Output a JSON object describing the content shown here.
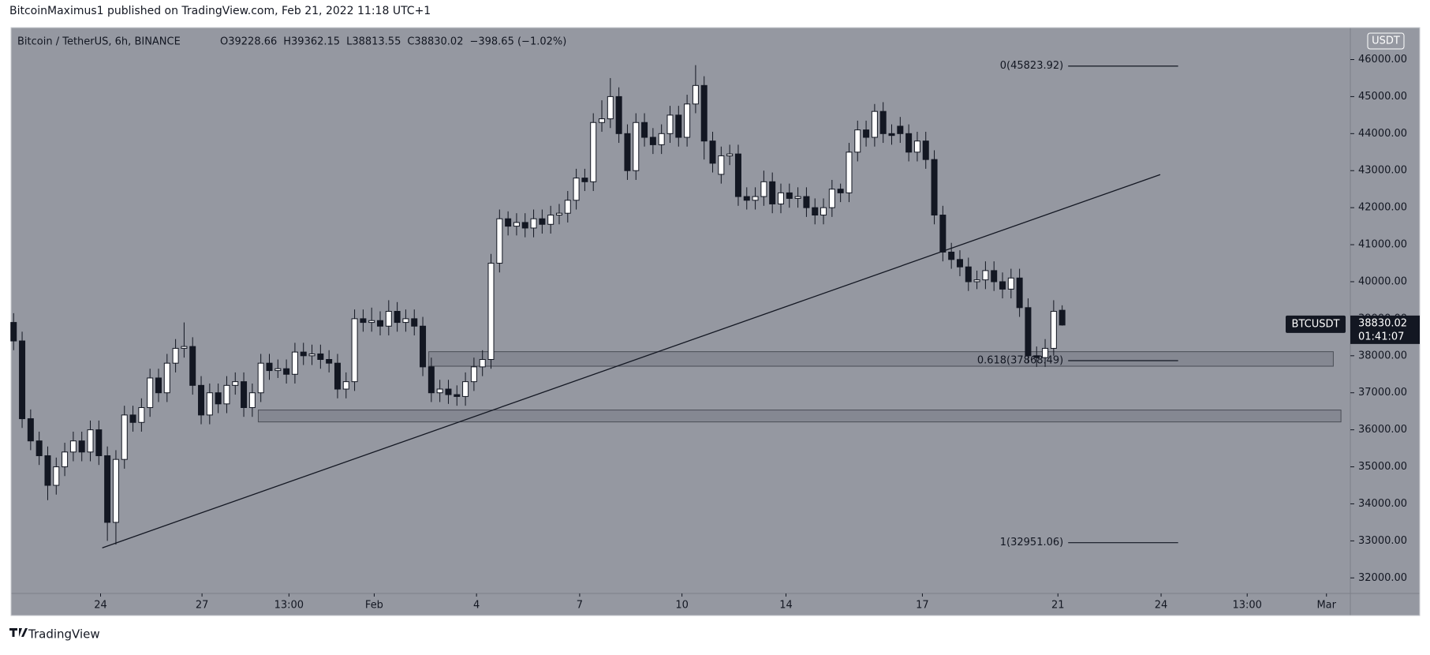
{
  "chart_data": {
    "type": "candlestick",
    "published": "BitcoinMaximus1 published on TradingView.com, Feb 21, 2022 11:18 UTC+1",
    "title": "Bitcoin / TetherUS, 6h, BINANCE",
    "header_ohlc": [
      "O39228.66",
      "H39362.15",
      "L38813.55",
      "C38830.02"
    ],
    "header_change": "−398.65 (−1.02%)",
    "currency": "USDT",
    "brand": "TradingView",
    "up_color": "#ffffff",
    "down_color": "#131722",
    "background": "#9598a1",
    "xlim": [
      -0.3,
      156.8
    ],
    "ylim": [
      31580,
      46863
    ],
    "xticks": [
      {
        "value": 10.2,
        "label": "24"
      },
      {
        "value": 22.1,
        "label": "27"
      },
      {
        "value": 32.3,
        "label": "13:00"
      },
      {
        "value": 42.3,
        "label": "Feb"
      },
      {
        "value": 54.3,
        "label": "4"
      },
      {
        "value": 66.4,
        "label": "7"
      },
      {
        "value": 78.4,
        "label": "10"
      },
      {
        "value": 90.6,
        "label": "14"
      },
      {
        "value": 106.6,
        "label": "17"
      },
      {
        "value": 122.5,
        "label": "21"
      },
      {
        "value": 134.6,
        "label": "24"
      },
      {
        "value": 144.7,
        "label": "13:00"
      },
      {
        "value": 154,
        "label": "Mar"
      }
    ],
    "yticks": [
      {
        "value": 32000,
        "label": "32000.00"
      },
      {
        "value": 33000,
        "label": "33000.00"
      },
      {
        "value": 34000,
        "label": "34000.00"
      },
      {
        "value": 35000,
        "label": "35000.00"
      },
      {
        "value": 36000,
        "label": "36000.00"
      },
      {
        "value": 37000,
        "label": "37000.00"
      },
      {
        "value": 38000,
        "label": "38000.00"
      },
      {
        "value": 39000,
        "label": "39000.00"
      },
      {
        "value": 40000,
        "label": "40000.00"
      },
      {
        "value": 41000,
        "label": "41000.00"
      },
      {
        "value": 42000,
        "label": "42000.00"
      },
      {
        "value": 43000,
        "label": "43000.00"
      },
      {
        "value": 44000,
        "label": "44000.00"
      },
      {
        "value": 45000,
        "label": "45000.00"
      },
      {
        "value": 46000,
        "label": "46000.00"
      }
    ],
    "x": [
      0,
      1,
      2,
      3,
      4,
      5,
      6,
      7,
      8,
      9,
      10,
      11,
      12,
      13,
      14,
      15,
      16,
      17,
      18,
      19,
      20,
      21,
      22,
      23,
      24,
      25,
      26,
      27,
      28,
      29,
      30,
      31,
      32,
      33,
      34,
      35,
      36,
      37,
      38,
      39,
      40,
      41,
      42,
      43,
      44,
      45,
      46,
      47,
      48,
      49,
      50,
      51,
      52,
      53,
      54,
      55,
      56,
      57,
      58,
      59,
      60,
      61,
      62,
      63,
      64,
      65,
      66,
      67,
      68,
      69,
      70,
      71,
      72,
      73,
      74,
      75,
      76,
      77,
      78,
      79,
      80,
      81,
      82,
      83,
      84,
      85,
      86,
      87,
      88,
      89,
      90,
      91,
      92,
      93,
      94,
      95,
      96,
      97,
      98,
      99,
      100,
      101,
      102,
      103,
      104,
      105,
      106,
      107,
      108,
      109,
      110,
      111,
      112,
      113,
      114,
      115,
      116,
      117,
      118,
      119,
      120,
      121,
      122,
      123
    ],
    "open": [
      38900,
      38400,
      36300,
      35700,
      35300,
      34500,
      35000,
      35400,
      35700,
      35400,
      36000,
      35300,
      33500,
      35200,
      36400,
      36200,
      36600,
      37400,
      37000,
      37800,
      38200,
      38250,
      37200,
      36400,
      37000,
      36700,
      37200,
      37300,
      36600,
      37000,
      37800,
      37600,
      37650,
      37500,
      38100,
      38000,
      38050,
      37900,
      37800,
      37100,
      37300,
      39000,
      38900,
      38950,
      38800,
      39200,
      38900,
      39000,
      38800,
      37700,
      37000,
      37100,
      36950,
      36900,
      37300,
      37700,
      37900,
      40500,
      41700,
      41500,
      41600,
      41450,
      41700,
      41550,
      41800,
      41850,
      42200,
      42800,
      42700,
      44300,
      44400,
      45000,
      44000,
      43000,
      44300,
      43900,
      43700,
      44000,
      44500,
      43900,
      44800,
      45300,
      43800,
      42900,
      43400,
      43450,
      42300,
      42200,
      42300,
      42700,
      42100,
      42400,
      42250,
      42300,
      42000,
      41800,
      42000,
      42500,
      42400,
      43500,
      44100,
      43900,
      44600,
      44000,
      44200,
      44000,
      43500,
      43800,
      43300,
      41800,
      40800,
      40600,
      40400,
      40000,
      40050,
      40300,
      40000,
      39800,
      40100,
      39300,
      38000,
      37950,
      38200,
      39228.66
    ],
    "high": [
      39150,
      38650,
      36550,
      35950,
      35550,
      35250,
      35650,
      35950,
      35950,
      36250,
      36250,
      35550,
      35450,
      36650,
      36650,
      36850,
      37650,
      37650,
      38050,
      38450,
      38900,
      38500,
      37450,
      37250,
      37250,
      37450,
      37550,
      37550,
      37250,
      38050,
      38050,
      37900,
      37900,
      38350,
      38350,
      38300,
      38300,
      38150,
      38050,
      37550,
      39250,
      39250,
      39300,
      39200,
      39500,
      39450,
      39250,
      39250,
      39050,
      37950,
      37350,
      37350,
      37200,
      37550,
      37950,
      38150,
      40750,
      41950,
      41900,
      41850,
      41850,
      41950,
      41950,
      42050,
      42100,
      42450,
      43050,
      43050,
      44550,
      44900,
      45500,
      45250,
      44250,
      44550,
      44550,
      44150,
      44250,
      44750,
      44750,
      45050,
      45850,
      45550,
      44050,
      43650,
      43700,
      43700,
      42550,
      42550,
      43000,
      42950,
      42650,
      42650,
      42550,
      42550,
      42250,
      42250,
      42750,
      42650,
      43750,
      44350,
      44350,
      44800,
      44850,
      44250,
      44450,
      44250,
      44050,
      44050,
      43550,
      42050,
      41050,
      40850,
      40650,
      40300,
      40550,
      40550,
      40250,
      40350,
      40350,
      39550,
      38250,
      38450,
      39500,
      39362.15
    ],
    "low": [
      38150,
      36050,
      35450,
      35050,
      34100,
      34250,
      34750,
      35150,
      35150,
      35150,
      35050,
      33000,
      32900,
      34950,
      35950,
      35950,
      36350,
      36750,
      36750,
      37550,
      37950,
      36950,
      36150,
      36150,
      36450,
      36450,
      36950,
      36350,
      36350,
      36750,
      37350,
      37400,
      37250,
      37250,
      37750,
      37750,
      37650,
      37550,
      36850,
      36850,
      37050,
      38650,
      38650,
      38550,
      38550,
      38650,
      38650,
      38550,
      37450,
      36750,
      36750,
      36700,
      36650,
      36650,
      37050,
      37450,
      37650,
      40250,
      41250,
      41250,
      41200,
      41200,
      41300,
      41300,
      41550,
      41600,
      41950,
      42450,
      42450,
      44050,
      44150,
      43750,
      42750,
      42750,
      43650,
      43450,
      43450,
      43750,
      43650,
      43650,
      44550,
      43300,
      42950,
      42650,
      43150,
      42050,
      41950,
      41950,
      42050,
      41850,
      41850,
      42000,
      42000,
      41750,
      41550,
      41550,
      41750,
      42150,
      42150,
      43250,
      43650,
      43650,
      43750,
      43700,
      43750,
      43250,
      43250,
      43050,
      41550,
      40550,
      40350,
      40150,
      39750,
      39800,
      39800,
      39750,
      39550,
      39550,
      39050,
      37800,
      37700,
      37700,
      38000,
      38813.55
    ],
    "close": [
      38400,
      36300,
      35700,
      35300,
      34500,
      35000,
      35400,
      35700,
      35400,
      36000,
      35300,
      33500,
      35200,
      36400,
      36200,
      36600,
      37400,
      37000,
      37800,
      38200,
      38250,
      37200,
      36400,
      37000,
      36700,
      37200,
      37300,
      36600,
      37000,
      37800,
      37600,
      37650,
      37500,
      38100,
      38000,
      38050,
      37900,
      37800,
      37100,
      37300,
      39000,
      38900,
      38950,
      38800,
      39200,
      38900,
      39000,
      38800,
      37700,
      37000,
      37100,
      36950,
      36900,
      37300,
      37700,
      37900,
      40500,
      41700,
      41500,
      41600,
      41450,
      41700,
      41550,
      41800,
      41850,
      42200,
      42800,
      42700,
      44300,
      44400,
      45000,
      44000,
      43000,
      44300,
      43900,
      43700,
      44000,
      44500,
      43900,
      44800,
      45300,
      43800,
      43200,
      43400,
      43450,
      42300,
      42200,
      42300,
      42700,
      42100,
      42400,
      42250,
      42300,
      42000,
      41800,
      42000,
      42500,
      42400,
      43500,
      44100,
      43900,
      44600,
      44000,
      43950,
      44000,
      43500,
      43800,
      43300,
      41800,
      40800,
      40600,
      40400,
      40000,
      40050,
      40300,
      40000,
      39800,
      40100,
      39300,
      38000,
      37950,
      38200,
      39200,
      38830.02
    ],
    "trendline": {
      "x": [
        10.4,
        134.5
      ],
      "y": [
        32812,
        42894
      ]
    },
    "zones": [
      {
        "x": [
          48.7,
          154.8
        ],
        "y": [
          37718,
          38110
        ]
      },
      {
        "x": [
          28.7,
          155.7
        ],
        "y": [
          36213,
          36534
        ]
      }
    ],
    "fib_levels": [
      {
        "label": "0(45823.92)",
        "value": 45823.92,
        "x": [
          123.7,
          136.6
        ]
      },
      {
        "label": "0.618(37868.49)",
        "value": 37868.49,
        "x": [
          123.7,
          136.6
        ]
      },
      {
        "label": "1(32951.06)",
        "value": 32951.06,
        "x": [
          123.7,
          136.6
        ]
      }
    ],
    "price_label": {
      "symbol": "BTCUSDT",
      "value": 38830.02,
      "countdown": "01:41:07"
    }
  }
}
